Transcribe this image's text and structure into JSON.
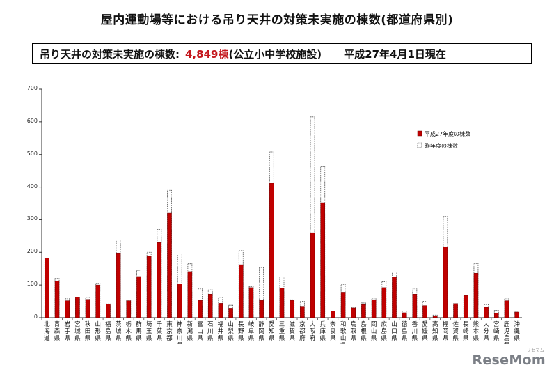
{
  "title": "屋内運動場等における吊り天井の対策未実施の棟数(都道府県別)",
  "summary": {
    "label": "吊り天井の対策未実施の棟数:",
    "count": "4,849棟",
    "scope": "(公立小中学校施設)",
    "as_of": "平成27年4月1日現在"
  },
  "logo": {
    "text": "ReseMom",
    "small": "リセマム"
  },
  "colors": {
    "current": "#c00000",
    "previous_border": "#555555",
    "axis": "#333333"
  },
  "chart_data": {
    "type": "bar",
    "stacked_overlay": true,
    "ylim": [
      0,
      700
    ],
    "yticks": [
      0,
      100,
      200,
      300,
      400,
      500,
      600,
      700
    ],
    "grid": false,
    "legend_position": "top-right",
    "categories": [
      "北海道",
      "青森県",
      "岩手県",
      "宮城県",
      "秋田県",
      "山形県",
      "福島県",
      "茨城県",
      "栃木県",
      "群馬県",
      "埼玉県",
      "千葉県",
      "東京都",
      "神奈川県",
      "新潟県",
      "富山県",
      "石川県",
      "福井県",
      "山梨県",
      "長野県",
      "岐阜県",
      "静岡県",
      "愛知県",
      "三重県",
      "滋賀県",
      "京都府",
      "大阪府",
      "兵庫県",
      "奈良県",
      "和歌山県",
      "鳥取県",
      "島根県",
      "岡山県",
      "広島県",
      "山口県",
      "徳島県",
      "香川県",
      "愛媛県",
      "高知県",
      "福岡県",
      "佐賀県",
      "長崎県",
      "熊本県",
      "大分県",
      "宮崎県",
      "鹿児島県",
      "沖縄県"
    ],
    "series": [
      {
        "name": "平成27年度の棟数",
        "style": "filled",
        "values": [
          182,
          112,
          52,
          63,
          56,
          100,
          42,
          198,
          52,
          126,
          188,
          230,
          320,
          104,
          141,
          53,
          72,
          44,
          29,
          162,
          92,
          53,
          412,
          90,
          53,
          35,
          260,
          352,
          20,
          78,
          30,
          40,
          55,
          92,
          125,
          15,
          72,
          37,
          6,
          216,
          43,
          68,
          136,
          32,
          14,
          52,
          17
        ]
      },
      {
        "name": "昨年度の棟数",
        "style": "dashed-outline",
        "values": [
          182,
          120,
          58,
          63,
          62,
          105,
          42,
          238,
          52,
          145,
          200,
          270,
          390,
          195,
          165,
          88,
          85,
          62,
          38,
          205,
          95,
          155,
          508,
          125,
          55,
          50,
          615,
          462,
          20,
          102,
          32,
          45,
          58,
          110,
          140,
          20,
          88,
          50,
          8,
          310,
          43,
          68,
          166,
          40,
          22,
          58,
          17
        ]
      }
    ]
  }
}
